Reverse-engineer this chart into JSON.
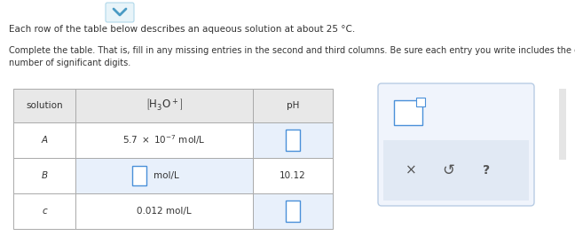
{
  "title1": "Each row of the table below describes an aqueous solution at about 25 °C.",
  "title2": "Complete the table. That is, fill in any missing entries in the second and third columns. Be sure each entry you write includes the correct\nnumber of significant digits.",
  "col_headers": [
    "solution",
    "[H₃O⁺]",
    "pH"
  ],
  "rows": [
    {
      "solution": "A",
      "conc": "5.7 × 10⁻⁷ mol/L",
      "ph": ""
    },
    {
      "solution": "B",
      "conc": "",
      "ph": "10.12"
    },
    {
      "solution": "c",
      "conc": "0.012 mol/L",
      "ph": ""
    }
  ],
  "bg_color": "#ffffff",
  "header_bg": "#e8e8e8",
  "cell_bg": "#ffffff",
  "empty_cell_highlight": "#e8f0fb",
  "text_color": "#333333",
  "border_color": "#aaaaaa",
  "answer_box_color": "#f0f4fc",
  "answer_box_border": "#b8cce4",
  "chevron_color": "#4a9bc4",
  "input_box_border": "#4a90d9",
  "input_box_fill": "#ffffff",
  "font_size_title": 7.5,
  "font_size_header": 7.5,
  "font_size_cell": 7.5,
  "font_size_icons": 9
}
